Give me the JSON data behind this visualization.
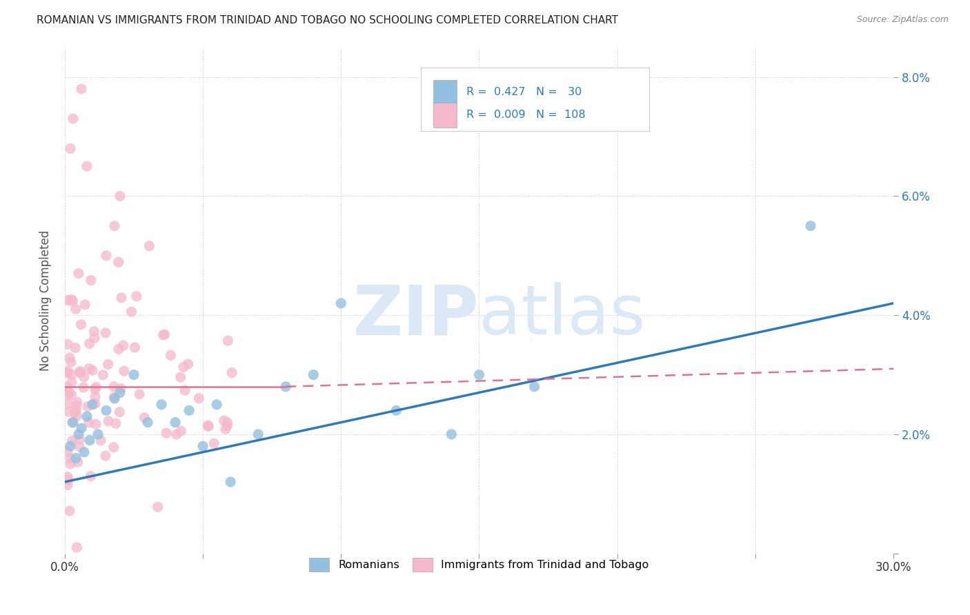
{
  "title": "ROMANIAN VS IMMIGRANTS FROM TRINIDAD AND TOBAGO NO SCHOOLING COMPLETED CORRELATION CHART",
  "source": "Source: ZipAtlas.com",
  "ylabel": "No Schooling Completed",
  "xlim": [
    0.0,
    0.3
  ],
  "ylim": [
    0.0,
    0.085
  ],
  "xticks": [
    0.0,
    0.05,
    0.1,
    0.15,
    0.2,
    0.25,
    0.3
  ],
  "yticks": [
    0.0,
    0.02,
    0.04,
    0.06,
    0.08
  ],
  "blue_R": "0.427",
  "blue_N": "30",
  "pink_R": "0.009",
  "pink_N": "108",
  "blue_color": "#92c0e0",
  "pink_color": "#f5b8ca",
  "blue_line_color": "#2b7bba",
  "pink_line_color": "#e07090",
  "watermark_color": "#dce8f5",
  "legend_items": [
    "Romanians",
    "Immigrants from Trinidad and Tobago"
  ],
  "blue_line_x0": 0.0,
  "blue_line_y0": 0.012,
  "blue_line_x1": 0.3,
  "blue_line_y1": 0.042,
  "pink_line_solid_x0": 0.0,
  "pink_line_solid_y0": 0.028,
  "pink_line_solid_x1": 0.08,
  "pink_line_solid_y1": 0.028,
  "pink_line_dash_x0": 0.08,
  "pink_line_dash_y0": 0.028,
  "pink_line_dash_x1": 0.3,
  "pink_line_dash_y1": 0.031
}
